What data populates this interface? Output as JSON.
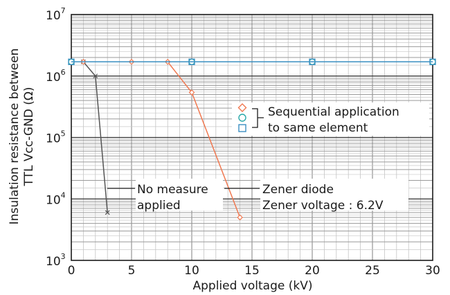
{
  "chart_data": {
    "type": "scatter",
    "xlabel": "Applied voltage (kV)",
    "ylabel_lines": [
      "Insulation resistance between",
      "TTL Vcc-GND (Ω)"
    ],
    "xlim": [
      0,
      30
    ],
    "ylim": [
      1000,
      10000000
    ],
    "yscale": "log",
    "grid": true,
    "x_ticks": [
      0,
      5,
      10,
      15,
      20,
      25,
      30
    ],
    "x_tick_labels": [
      "0",
      "5",
      "10",
      "15",
      "20",
      "25",
      "30"
    ],
    "y_ticks": [
      {
        "value": 1000,
        "base": "10",
        "exp": "3"
      },
      {
        "value": 10000,
        "base": "10",
        "exp": "4"
      },
      {
        "value": 100000,
        "base": "10",
        "exp": "5"
      },
      {
        "value": 1000000,
        "base": "10",
        "exp": "6"
      },
      {
        "value": 10000000,
        "base": "10",
        "exp": "7"
      }
    ],
    "series": [
      {
        "key": "no_measure",
        "marker": "x",
        "color": "#555555",
        "x": [
          0,
          1,
          2,
          3
        ],
        "y": [
          1700000,
          1700000,
          1000000,
          6000
        ]
      },
      {
        "key": "zener",
        "marker": "diamond",
        "color": "#f07850",
        "x": [
          1,
          5,
          8,
          10,
          14
        ],
        "y": [
          1700000,
          1700000,
          1700000,
          540000,
          5000
        ]
      },
      {
        "key": "circle",
        "marker": "circle",
        "color": "#2aa9a9",
        "x": [
          0,
          10,
          20,
          30
        ],
        "y": [
          1700000,
          1700000,
          1700000,
          1700000
        ]
      },
      {
        "key": "square",
        "marker": "square",
        "color": "#3a8fc2",
        "x": [
          0,
          10,
          20,
          30
        ],
        "y": [
          1700000,
          1700000,
          1700000,
          1700000
        ]
      }
    ],
    "annotations": {
      "legend_lines": [
        "Sequential application",
        "to same element"
      ],
      "no_measure_lines": [
        "No measure",
        "applied"
      ],
      "zener_lines": [
        "Zener diode",
        "Zener voltage : 6.2V"
      ]
    }
  }
}
